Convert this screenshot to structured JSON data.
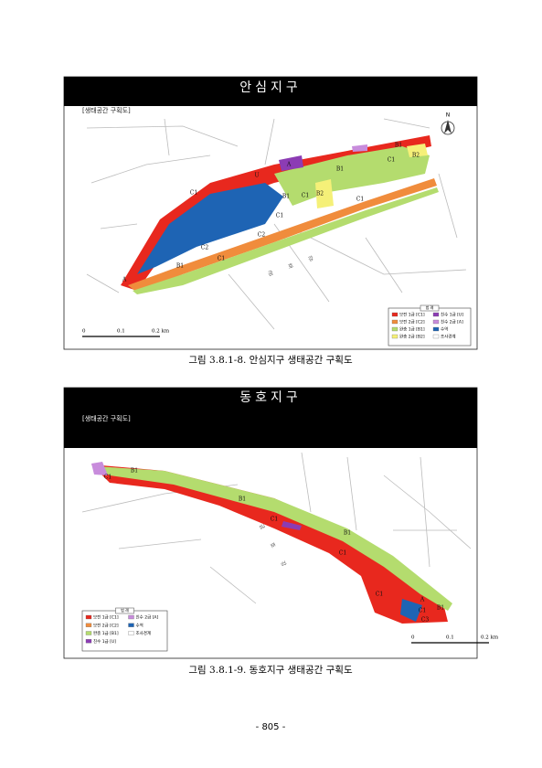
{
  "figures": [
    {
      "title": "안심지구",
      "subtitle": "[생태공간 구획도]",
      "caption": "그림 3.8.1-8. 안심지구 생태공간 구획도",
      "map_labels": [
        "C1",
        "B2",
        "B1",
        "B1",
        "C1",
        "B2",
        "B1",
        "C1",
        "C1",
        "C2",
        "C2",
        "C1",
        "B1",
        "A",
        "U",
        "A",
        "C1"
      ],
      "river": "금 호 강",
      "north": "N",
      "legend": {
        "title": "범 례",
        "items": [
          {
            "label": "보전 1급 [C1]",
            "color": "#e8281e"
          },
          {
            "label": "보전 2급 [C2]",
            "color": "#f08c3c"
          },
          {
            "label": "완충 1급 [B1]",
            "color": "#b4dc6e"
          },
          {
            "label": "완충 2급 [B2]",
            "color": "#f5f078"
          },
          {
            "label": "친수 1급 [U]",
            "color": "#8c3cb4"
          },
          {
            "label": "친수 2급 [A]",
            "color": "#c88cdc"
          },
          {
            "label": "수역",
            "color": "#1e64b4"
          },
          {
            "label": "조사경계",
            "color": "#ffffff"
          }
        ]
      },
      "scale": [
        "0",
        "0.1",
        "0.2 km"
      ]
    },
    {
      "title": "동호지구",
      "subtitle": "[생태공간 구획도]",
      "caption": "그림 3.8.1-9. 동호지구 생태공간 구획도",
      "map_labels": [
        "C1",
        "B1",
        "B1",
        "C1",
        "B1",
        "C1",
        "C1",
        "A",
        "C1",
        "B1",
        "C3"
      ],
      "river": "금 호 강",
      "legend": {
        "title": "범 례",
        "items": [
          {
            "label": "보전 1급 [C1]",
            "color": "#e8281e"
          },
          {
            "label": "보전 2급 [C2]",
            "color": "#f08c3c"
          },
          {
            "label": "완충 1급 [B1]",
            "color": "#b4dc6e"
          },
          {
            "label": "친수 1급 [U]",
            "color": "#8c3cb4"
          },
          {
            "label": "친수 2급 [A]",
            "color": "#c88cdc"
          },
          {
            "label": "수역",
            "color": "#1e64b4"
          },
          {
            "label": "조사경계",
            "color": "#ffffff"
          }
        ]
      },
      "scale": [
        "0",
        "0.1",
        "0.2 km"
      ]
    }
  ],
  "page_number": "- 805 -"
}
